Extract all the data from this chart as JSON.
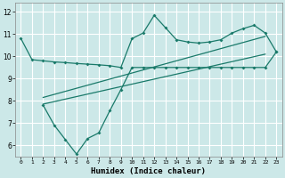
{
  "title": "",
  "xlabel": "Humidex (Indice chaleur)",
  "bg_color": "#cce8e8",
  "grid_color": "#ffffff",
  "line_color": "#1a7a6a",
  "xlim": [
    -0.5,
    23.5
  ],
  "ylim": [
    5.5,
    12.4
  ],
  "yticks": [
    6,
    7,
    8,
    9,
    10,
    11,
    12
  ],
  "xticks": [
    0,
    1,
    2,
    3,
    4,
    5,
    6,
    7,
    8,
    9,
    10,
    11,
    12,
    13,
    14,
    15,
    16,
    17,
    18,
    19,
    20,
    21,
    22,
    23
  ],
  "line1_x": [
    0,
    1,
    2,
    3,
    4,
    5,
    6,
    7,
    8,
    9,
    10,
    11,
    12,
    13,
    14,
    15,
    16,
    17,
    18,
    19,
    20,
    21,
    22,
    23
  ],
  "line1_y": [
    10.8,
    9.85,
    9.8,
    9.75,
    9.72,
    9.68,
    9.65,
    9.62,
    9.58,
    9.5,
    10.8,
    11.05,
    11.85,
    11.3,
    10.75,
    10.65,
    10.6,
    10.65,
    10.75,
    11.05,
    11.25,
    11.4,
    11.05,
    10.2
  ],
  "line2_x": [
    2,
    3,
    4,
    5,
    6,
    7,
    8,
    9,
    10,
    11,
    12,
    13,
    14,
    15,
    16,
    17,
    18,
    19,
    20,
    21,
    22,
    23
  ],
  "line2_y": [
    7.8,
    6.9,
    6.25,
    5.6,
    6.3,
    6.55,
    7.55,
    8.5,
    9.5,
    9.5,
    9.5,
    9.5,
    9.5,
    9.5,
    9.5,
    9.5,
    9.5,
    9.5,
    9.5,
    9.5,
    9.5,
    10.2
  ],
  "trend1_x": [
    2,
    22
  ],
  "trend1_y": [
    8.15,
    10.9
  ],
  "trend2_x": [
    2,
    22
  ],
  "trend2_y": [
    7.85,
    10.1
  ]
}
